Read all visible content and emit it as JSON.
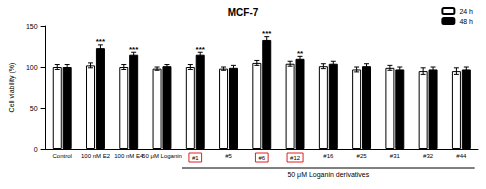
{
  "chart_data": {
    "type": "bar",
    "title": "MCF-7",
    "y_label": "Cell viability (%)",
    "categories": [
      "Control",
      "100 nM E2",
      "100 nM E4",
      "50 μM Loganin",
      "#1",
      "#5",
      "#6",
      "#12",
      "#16",
      "#25",
      "#31",
      "#32",
      "#44"
    ],
    "series": [
      {
        "name": "24 h",
        "color": "#ffffff",
        "values": [
          100,
          102,
          100,
          98,
          100,
          98,
          105,
          104,
          101,
          97,
          99,
          95,
          95
        ],
        "errors": [
          3,
          3,
          3,
          2,
          3,
          2,
          3,
          3,
          3,
          3,
          3,
          4,
          4
        ]
      },
      {
        "name": "48 h",
        "color": "#000000",
        "values": [
          100,
          123,
          115,
          101,
          115,
          99,
          133,
          110,
          104,
          101,
          97,
          97,
          97
        ],
        "errors": [
          3,
          4,
          3,
          2,
          3,
          3,
          4,
          3,
          3,
          3,
          3,
          3,
          3
        ],
        "significance": [
          null,
          "***",
          "***",
          null,
          "***",
          null,
          "***",
          "**",
          null,
          null,
          null,
          null,
          null
        ]
      }
    ],
    "ylim": [
      0,
      150
    ],
    "yticks": [
      0,
      50,
      100,
      150
    ],
    "grid": false,
    "legend": "upper right",
    "group_label": {
      "text": "50 μM Loganin derivatives",
      "from": "#1",
      "to": "#44"
    },
    "boxed": [
      "#1",
      "#6",
      "#12"
    ]
  }
}
